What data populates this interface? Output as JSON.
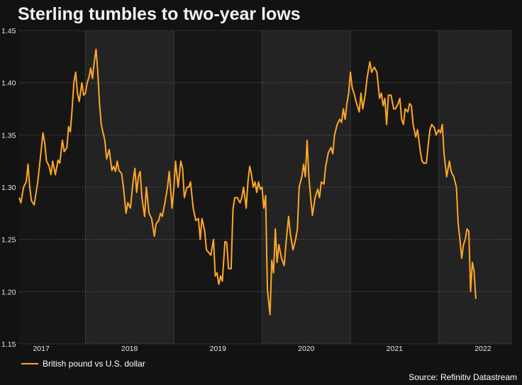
{
  "chart_data": {
    "type": "line",
    "title": "Sterling tumbles to two-year lows",
    "xlabel": "",
    "ylabel": "",
    "ylim": [
      1.15,
      1.45
    ],
    "yticks": [
      "1.15",
      "1.20",
      "1.25",
      "1.30",
      "1.35",
      "1.40",
      "1.45"
    ],
    "xticks": [
      "2017",
      "2018",
      "2019",
      "2020",
      "2021",
      "2022"
    ],
    "grid": true,
    "legend_placement": "bottom-left",
    "series": [
      {
        "name": "British pound vs U.S. dollar",
        "color": "#ffa726",
        "points": [
          [
            2016.75,
            1.29
          ],
          [
            2016.77,
            1.285
          ],
          [
            2016.8,
            1.3
          ],
          [
            2016.83,
            1.305
          ],
          [
            2016.85,
            1.322
          ],
          [
            2016.87,
            1.3
          ],
          [
            2016.89,
            1.287
          ],
          [
            2016.92,
            1.283
          ],
          [
            2016.96,
            1.305
          ],
          [
            2016.99,
            1.328
          ],
          [
            2017.02,
            1.352
          ],
          [
            2017.04,
            1.342
          ],
          [
            2017.06,
            1.325
          ],
          [
            2017.09,
            1.32
          ],
          [
            2017.11,
            1.312
          ],
          [
            2017.13,
            1.325
          ],
          [
            2017.16,
            1.312
          ],
          [
            2017.19,
            1.326
          ],
          [
            2017.21,
            1.323
          ],
          [
            2017.24,
            1.345
          ],
          [
            2017.26,
            1.334
          ],
          [
            2017.29,
            1.338
          ],
          [
            2017.31,
            1.358
          ],
          [
            2017.33,
            1.353
          ],
          [
            2017.35,
            1.375
          ],
          [
            2017.37,
            1.4
          ],
          [
            2017.39,
            1.41
          ],
          [
            2017.41,
            1.39
          ],
          [
            2017.43,
            1.382
          ],
          [
            2017.46,
            1.4
          ],
          [
            2017.48,
            1.388
          ],
          [
            2017.5,
            1.39
          ],
          [
            2017.52,
            1.4
          ],
          [
            2017.54,
            1.405
          ],
          [
            2017.56,
            1.414
          ],
          [
            2017.58,
            1.404
          ],
          [
            2017.6,
            1.42
          ],
          [
            2017.62,
            1.432
          ],
          [
            2017.64,
            1.41
          ],
          [
            2017.66,
            1.38
          ],
          [
            2017.68,
            1.36
          ],
          [
            2017.7,
            1.352
          ],
          [
            2017.72,
            1.345
          ],
          [
            2017.74,
            1.327
          ],
          [
            2017.77,
            1.336
          ],
          [
            2017.8,
            1.316
          ],
          [
            2017.82,
            1.32
          ],
          [
            2017.84,
            1.315
          ],
          [
            2017.86,
            1.325
          ],
          [
            2017.88,
            1.316
          ],
          [
            2017.91,
            1.313
          ],
          [
            2017.93,
            1.3
          ],
          [
            2017.96,
            1.275
          ],
          [
            2017.98,
            1.285
          ],
          [
            2018.01,
            1.28
          ],
          [
            2018.04,
            1.306
          ],
          [
            2018.06,
            1.318
          ],
          [
            2018.08,
            1.295
          ],
          [
            2018.1,
            1.31
          ],
          [
            2018.12,
            1.315
          ],
          [
            2018.14,
            1.29
          ],
          [
            2018.17,
            1.272
          ],
          [
            2018.19,
            1.3
          ],
          [
            2018.22,
            1.275
          ],
          [
            2018.25,
            1.27
          ],
          [
            2018.28,
            1.253
          ],
          [
            2018.3,
            1.265
          ],
          [
            2018.33,
            1.268
          ],
          [
            2018.35,
            1.275
          ],
          [
            2018.37,
            1.272
          ],
          [
            2018.4,
            1.285
          ],
          [
            2018.43,
            1.3
          ],
          [
            2018.45,
            1.315
          ],
          [
            2018.48,
            1.28
          ],
          [
            2018.5,
            1.297
          ],
          [
            2018.52,
            1.325
          ],
          [
            2018.55,
            1.3
          ],
          [
            2018.58,
            1.325
          ],
          [
            2018.6,
            1.318
          ],
          [
            2018.62,
            1.29
          ],
          [
            2018.65,
            1.3
          ],
          [
            2018.67,
            1.3
          ],
          [
            2018.69,
            1.305
          ],
          [
            2018.72,
            1.28
          ],
          [
            2018.75,
            1.268
          ],
          [
            2018.78,
            1.27
          ],
          [
            2018.8,
            1.25
          ],
          [
            2018.82,
            1.27
          ],
          [
            2018.85,
            1.258
          ],
          [
            2018.87,
            1.24
          ],
          [
            2018.89,
            1.238
          ],
          [
            2018.92,
            1.235
          ],
          [
            2018.95,
            1.25
          ],
          [
            2018.97,
            1.215
          ],
          [
            2018.99,
            1.218
          ],
          [
            2019.01,
            1.207
          ],
          [
            2019.03,
            1.215
          ],
          [
            2019.05,
            1.21
          ],
          [
            2019.08,
            1.248
          ],
          [
            2019.1,
            1.247
          ],
          [
            2019.12,
            1.222
          ],
          [
            2019.15,
            1.222
          ],
          [
            2019.17,
            1.278
          ],
          [
            2019.19,
            1.29
          ],
          [
            2019.22,
            1.29
          ],
          [
            2019.25,
            1.285
          ],
          [
            2019.27,
            1.29
          ],
          [
            2019.29,
            1.3
          ],
          [
            2019.32,
            1.28
          ],
          [
            2019.34,
            1.305
          ],
          [
            2019.36,
            1.32
          ],
          [
            2019.38,
            1.312
          ],
          [
            2019.4,
            1.3
          ],
          [
            2019.42,
            1.305
          ],
          [
            2019.44,
            1.295
          ],
          [
            2019.46,
            1.305
          ],
          [
            2019.48,
            1.298
          ],
          [
            2019.5,
            1.3
          ],
          [
            2019.52,
            1.28
          ],
          [
            2019.54,
            1.292
          ],
          [
            2019.56,
            1.202
          ],
          [
            2019.59,
            1.178
          ],
          [
            2019.61,
            1.23
          ],
          [
            2019.63,
            1.218
          ],
          [
            2019.65,
            1.26
          ],
          [
            2019.67,
            1.228
          ],
          [
            2019.69,
            1.245
          ],
          [
            2019.72,
            1.232
          ],
          [
            2019.75,
            1.225
          ],
          [
            2019.77,
            1.245
          ],
          [
            2019.8,
            1.272
          ],
          [
            2019.82,
            1.255
          ],
          [
            2019.85,
            1.24
          ],
          [
            2019.88,
            1.25
          ],
          [
            2019.9,
            1.26
          ],
          [
            2019.92,
            1.3
          ],
          [
            2019.95,
            1.31
          ],
          [
            2019.97,
            1.322
          ],
          [
            2019.99,
            1.31
          ],
          [
            2020.01,
            1.345
          ],
          [
            2020.03,
            1.31
          ],
          [
            2020.05,
            1.29
          ],
          [
            2020.07,
            1.273
          ],
          [
            2020.1,
            1.29
          ],
          [
            2020.13,
            1.298
          ],
          [
            2020.15,
            1.29
          ],
          [
            2020.17,
            1.305
          ],
          [
            2020.2,
            1.303
          ],
          [
            2020.22,
            1.32
          ],
          [
            2020.25,
            1.333
          ],
          [
            2020.28,
            1.338
          ],
          [
            2020.3,
            1.332
          ],
          [
            2020.32,
            1.35
          ],
          [
            2020.35,
            1.36
          ],
          [
            2020.38,
            1.365
          ],
          [
            2020.4,
            1.362
          ],
          [
            2020.42,
            1.375
          ],
          [
            2020.44,
            1.365
          ],
          [
            2020.46,
            1.38
          ],
          [
            2020.48,
            1.39
          ],
          [
            2020.5,
            1.41
          ],
          [
            2020.52,
            1.395
          ],
          [
            2020.54,
            1.39
          ],
          [
            2020.57,
            1.38
          ],
          [
            2020.6,
            1.372
          ],
          [
            2020.62,
            1.39
          ],
          [
            2020.64,
            1.375
          ],
          [
            2020.67,
            1.39
          ],
          [
            2020.69,
            1.405
          ],
          [
            2020.72,
            1.42
          ],
          [
            2020.74,
            1.41
          ],
          [
            2020.77,
            1.415
          ],
          [
            2020.8,
            1.41
          ],
          [
            2020.83,
            1.385
          ],
          [
            2020.85,
            1.39
          ],
          [
            2020.87,
            1.378
          ],
          [
            2020.89,
            1.385
          ],
          [
            2020.91,
            1.36
          ],
          [
            2020.93,
            1.388
          ],
          [
            2020.96,
            1.388
          ],
          [
            2020.99,
            1.375
          ],
          [
            2021.01,
            1.375
          ],
          [
            2021.04,
            1.38
          ],
          [
            2021.06,
            1.385
          ],
          [
            2021.08,
            1.365
          ],
          [
            2021.1,
            1.36
          ],
          [
            2021.12,
            1.375
          ],
          [
            2021.15,
            1.372
          ],
          [
            2021.17,
            1.38
          ],
          [
            2021.19,
            1.378
          ],
          [
            2021.21,
            1.36
          ],
          [
            2021.24,
            1.348
          ],
          [
            2021.26,
            1.355
          ],
          [
            2021.29,
            1.335
          ],
          [
            2021.31,
            1.325
          ],
          [
            2021.33,
            1.323
          ],
          [
            2021.36,
            1.323
          ],
          [
            2021.38,
            1.34
          ],
          [
            2021.4,
            1.355
          ],
          [
            2021.42,
            1.36
          ],
          [
            2021.45,
            1.357
          ],
          [
            2021.47,
            1.35
          ],
          [
            2021.5,
            1.355
          ],
          [
            2021.52,
            1.352
          ],
          [
            2021.54,
            1.36
          ],
          [
            2021.56,
            1.332
          ],
          [
            2021.59,
            1.31
          ],
          [
            2021.62,
            1.325
          ],
          [
            2021.64,
            1.315
          ],
          [
            2021.67,
            1.31
          ],
          [
            2021.7,
            1.3
          ],
          [
            2021.72,
            1.265
          ],
          [
            2021.74,
            1.25
          ],
          [
            2021.76,
            1.232
          ],
          [
            2021.78,
            1.245
          ],
          [
            2021.8,
            1.25
          ],
          [
            2021.82,
            1.26
          ],
          [
            2021.84,
            1.258
          ],
          [
            2021.86,
            1.2
          ],
          [
            2021.88,
            1.228
          ],
          [
            2021.9,
            1.22
          ],
          [
            2021.92,
            1.193
          ]
        ]
      }
    ]
  },
  "legend": {
    "label": "British pound vs U.S. dollar"
  },
  "source": "Source: Refinitiv Datastream"
}
